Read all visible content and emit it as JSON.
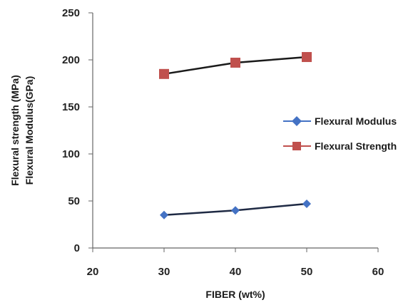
{
  "chart_data": {
    "type": "line",
    "xlabel": "FIBER (wt%)",
    "ylabel_lines": [
      "Flexural strength (MPa)",
      "Flexural Modulus(GPa)"
    ],
    "xlim": [
      20,
      60
    ],
    "ylim": [
      0,
      250
    ],
    "xticks": [
      "20",
      "30",
      "40",
      "50",
      "60"
    ],
    "yticks": [
      "0",
      "50",
      "100",
      "150",
      "200",
      "250"
    ],
    "grid": false,
    "legend_position": "right",
    "series": [
      {
        "name": "Flexural Modulus",
        "marker": "diamond",
        "color": "#4472C4",
        "line_color": "#1f2a44",
        "x": [
          30,
          40,
          50
        ],
        "y": [
          35,
          40,
          47
        ]
      },
      {
        "name": "Flexural Strength",
        "marker": "square",
        "color": "#C0504D",
        "line_color": "#1a1a1a",
        "x": [
          30,
          40,
          50
        ],
        "y": [
          185,
          197,
          203
        ]
      }
    ]
  }
}
